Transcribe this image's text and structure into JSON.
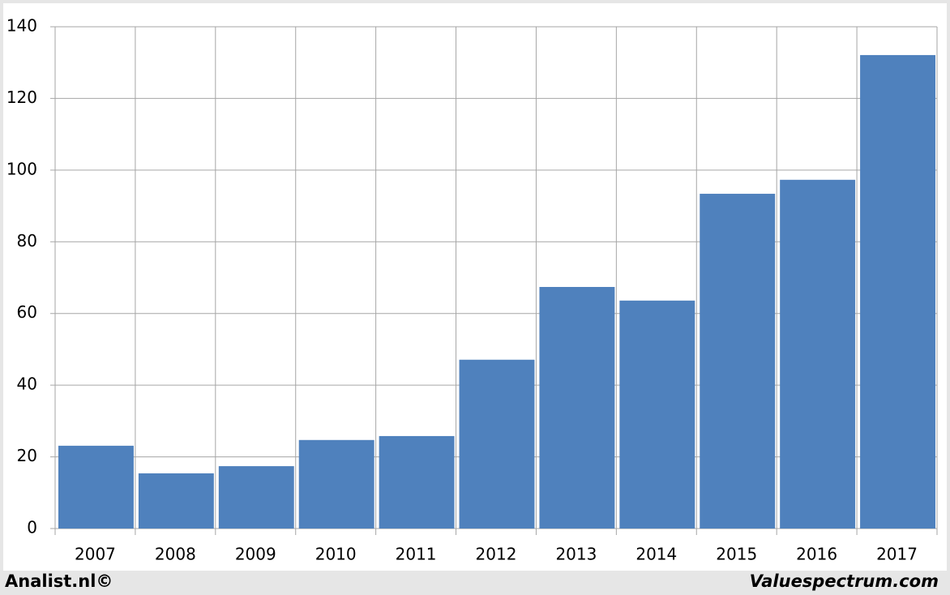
{
  "chart_data": {
    "type": "bar",
    "categories": [
      "2007",
      "2008",
      "2009",
      "2010",
      "2011",
      "2012",
      "2013",
      "2014",
      "2015",
      "2016",
      "2017"
    ],
    "values": [
      23.1,
      15.4,
      17.4,
      24.7,
      25.8,
      47.1,
      67.4,
      63.6,
      93.4,
      97.3,
      132.1
    ],
    "color": "#4f81bd",
    "ylim": [
      0,
      140
    ],
    "yticks": [
      0,
      20,
      40,
      60,
      80,
      100,
      120,
      140
    ],
    "grid": true,
    "annotations": [
      "Analist.nl©",
      "Valuespectrum.com"
    ]
  }
}
